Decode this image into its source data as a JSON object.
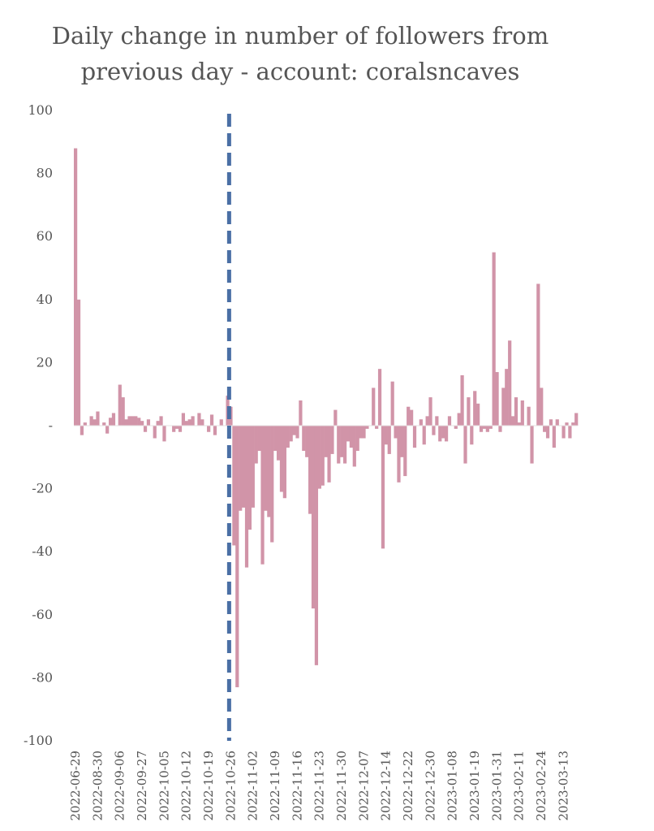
{
  "chart_data": {
    "type": "bar",
    "title_lines": [
      "Daily change in number of followers from",
      "previous day - account: coralsncaves"
    ],
    "xlabel": "",
    "ylabel": "",
    "ylim": [
      -100,
      100
    ],
    "y_ticks": [
      100,
      80,
      60,
      40,
      20,
      0,
      -20,
      -40,
      -60,
      -80,
      -100
    ],
    "y_tick_labels": [
      "100",
      "80",
      "60",
      "40",
      "20",
      "-",
      "-20",
      "-40",
      "-60",
      "-80",
      "-100"
    ],
    "x_tick_labels": [
      "2022-06-29",
      "2022-08-30",
      "2022-09-06",
      "2022-09-27",
      "2022-10-05",
      "2022-10-12",
      "2022-10-19",
      "2022-10-26",
      "2022-11-02",
      "2022-11-09",
      "2022-11-16",
      "2022-11-23",
      "2022-11-30",
      "2022-12-07",
      "2022-12-14",
      "2022-12-22",
      "2022-12-30",
      "2023-01-08",
      "2023-01-19",
      "2023-01-31",
      "2023-02-11",
      "2023-02-24",
      "2023-03-13"
    ],
    "x_tick_positions": [
      0,
      7,
      14,
      21,
      28,
      35,
      42,
      49,
      56,
      63,
      70,
      77,
      84,
      91,
      98,
      105,
      112,
      119,
      126,
      133,
      140,
      147,
      154
    ],
    "values": [
      88,
      40,
      -3,
      1,
      0,
      3,
      2,
      4.5,
      0,
      1,
      -2.5,
      2.5,
      4,
      0,
      13,
      9,
      2,
      3,
      3,
      3,
      2.5,
      1.5,
      -2,
      2,
      0,
      -4,
      1.5,
      3,
      -5,
      0,
      0,
      -2,
      -1,
      -2,
      4,
      1.5,
      2,
      3,
      0,
      4,
      2,
      0,
      -2,
      3.5,
      -3,
      0,
      2,
      0,
      9.5,
      6,
      -38,
      -83,
      -27,
      -26,
      -45,
      -33,
      -26,
      -12,
      -8,
      -44,
      -27,
      -29,
      -37,
      -8,
      -11,
      -21,
      -23,
      -7,
      -5,
      -3,
      -4,
      8,
      -8,
      -10,
      -28,
      -58,
      -76,
      -20,
      -19,
      -10,
      -18,
      -9,
      5,
      -12,
      -10,
      -12,
      -5,
      -7,
      -13,
      -8,
      -4,
      -4,
      -1,
      0,
      12,
      -1,
      18,
      -39,
      -6,
      -9,
      14,
      -4,
      -18,
      -10,
      -16,
      6,
      5,
      -7,
      0,
      2,
      -6,
      3,
      9,
      -3,
      3,
      -5,
      -4,
      -5,
      3,
      0,
      -1,
      4,
      16,
      -12,
      9,
      -6,
      11,
      7,
      -2,
      -1,
      -2,
      -1,
      55,
      17,
      -2,
      12,
      18,
      27,
      3,
      9,
      1,
      8,
      0,
      6,
      -12,
      0,
      45,
      12,
      -2,
      -4,
      2,
      -7,
      2,
      0,
      -4,
      1,
      -4,
      1,
      4
    ],
    "bar_color": "#d194a8",
    "marker_line": {
      "x_index": 49,
      "color": "#4a6fa5",
      "style": "dashed"
    },
    "grid": false,
    "legend": "none"
  }
}
